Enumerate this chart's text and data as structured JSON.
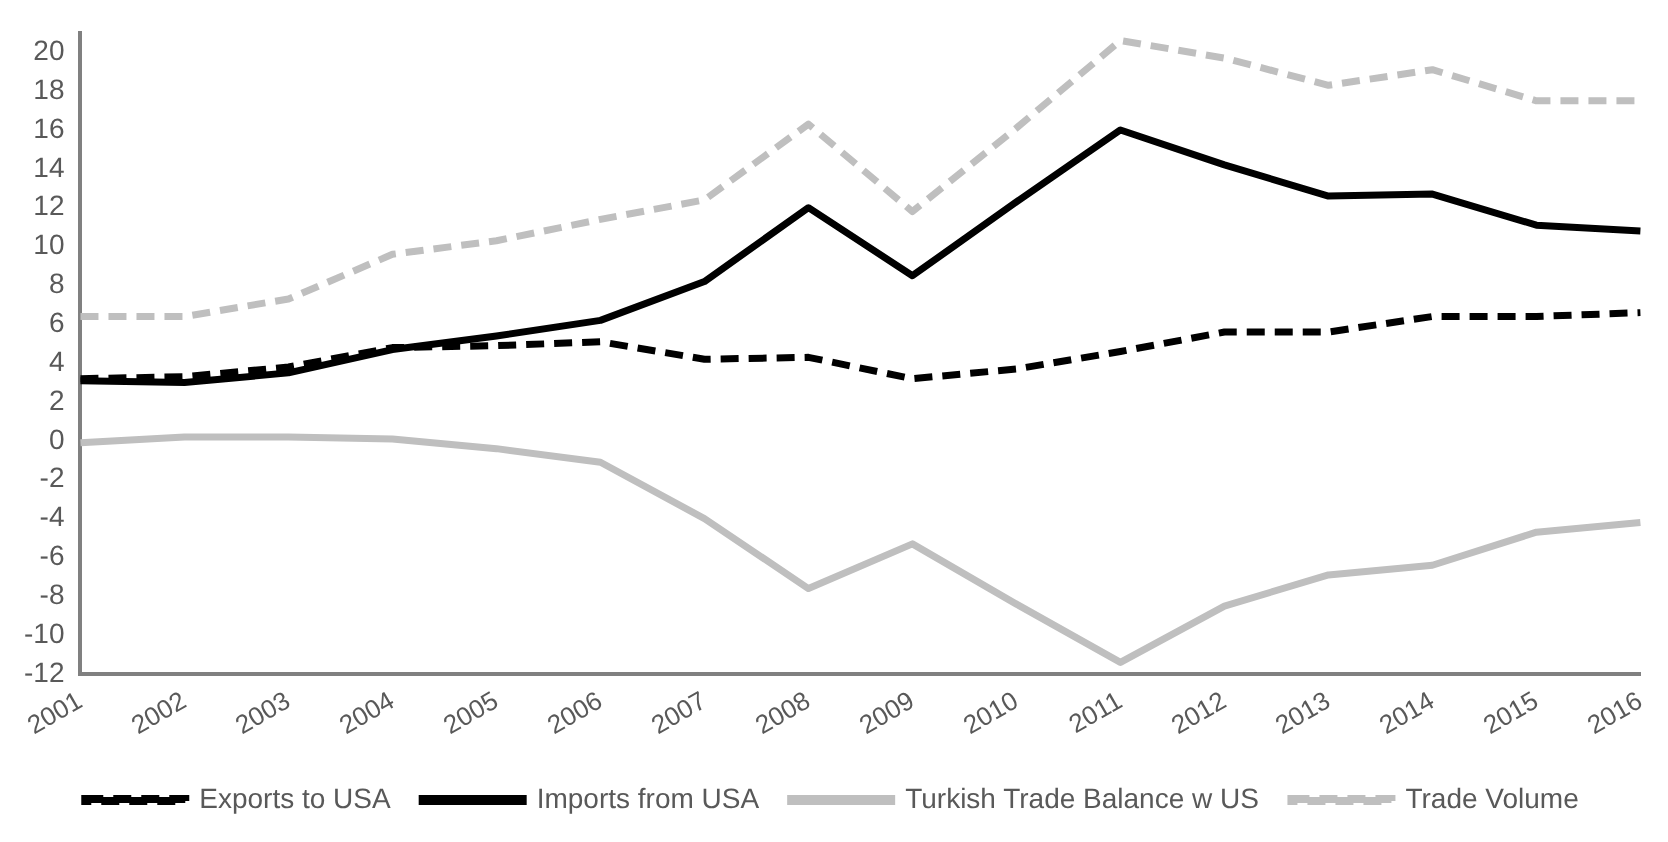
{
  "chart_data": {
    "type": "line",
    "categories": [
      "2001",
      "2002",
      "2003",
      "2004",
      "2005",
      "2006",
      "2007",
      "2008",
      "2009",
      "2010",
      "2011",
      "2012",
      "2013",
      "2014",
      "2015",
      "2016"
    ],
    "series": [
      {
        "name": "Exports to USA",
        "color": "#000000",
        "line_style": "dashed",
        "values": [
          3.2,
          3.3,
          3.8,
          4.8,
          4.9,
          5.1,
          4.2,
          4.3,
          3.2,
          3.7,
          4.6,
          5.6,
          5.6,
          6.4,
          6.4,
          6.6
        ]
      },
      {
        "name": "Imports from USA",
        "color": "#000000",
        "line_style": "solid",
        "values": [
          3.1,
          3.0,
          3.5,
          4.7,
          5.4,
          6.2,
          8.2,
          12.0,
          8.5,
          12.3,
          16.0,
          14.2,
          12.6,
          12.7,
          11.1,
          10.8
        ]
      },
      {
        "name": "Turkish Trade Balance w US",
        "color": "#bfbfbf",
        "line_style": "solid",
        "values": [
          -0.1,
          0.2,
          0.2,
          0.1,
          -0.4,
          -1.1,
          -4.0,
          -7.6,
          -5.3,
          -8.4,
          -11.4,
          -8.5,
          -6.9,
          -6.4,
          -4.7,
          -4.2
        ]
      },
      {
        "name": "Trade Volume",
        "color": "#bfbfbf",
        "line_style": "dashed",
        "values": [
          6.4,
          6.4,
          7.3,
          9.6,
          10.3,
          11.4,
          12.4,
          16.3,
          11.8,
          16.1,
          20.6,
          19.7,
          18.3,
          19.1,
          17.5,
          17.5
        ]
      }
    ],
    "ylim": [
      -12,
      21
    ],
    "yticks": [
      -12,
      -10,
      -8,
      -6,
      -4,
      -2,
      0,
      2,
      4,
      6,
      8,
      10,
      12,
      14,
      16,
      18,
      20
    ],
    "grid": false,
    "legend": "bottom",
    "marker": "none"
  }
}
